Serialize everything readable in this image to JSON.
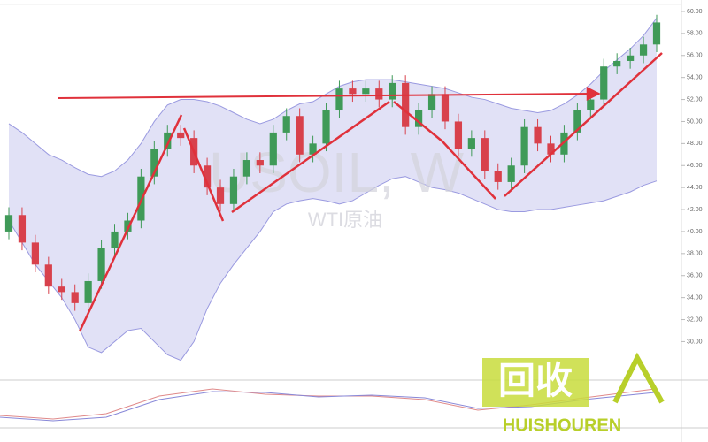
{
  "chart_data": {
    "type": "candlestick",
    "watermark": "USOIL, W",
    "subtitle": "WTI原油",
    "logo_text": "回收",
    "logo_subtext": "HUISHOUREN",
    "up_color": "#3f9a58",
    "down_color": "#d8414c",
    "band_color": "#9a9ae0",
    "ylim": [
      26.5,
      60.64
    ],
    "yticks": [
      {
        "value": 30,
        "label": "30.00"
      },
      {
        "value": 32,
        "label": "32.00"
      },
      {
        "value": 34,
        "label": "34.00"
      },
      {
        "value": 36,
        "label": "36.00"
      },
      {
        "value": 38,
        "label": "38.00"
      },
      {
        "value": 40,
        "label": "40.00"
      },
      {
        "value": 42,
        "label": "42.00"
      },
      {
        "value": 44,
        "label": "44.00"
      },
      {
        "value": 46,
        "label": "46.00"
      },
      {
        "value": 48,
        "label": "48.00"
      },
      {
        "value": 50,
        "label": "50.00"
      },
      {
        "value": 52,
        "label": "52.00"
      },
      {
        "value": 54,
        "label": "54.00"
      },
      {
        "value": 56,
        "label": "56.00"
      },
      {
        "value": 58,
        "label": "58.00"
      },
      {
        "value": 60,
        "label": "60.00"
      }
    ],
    "open": [
      40,
      41.5,
      39,
      37,
      35,
      34.5,
      33.5,
      35.5,
      38.5,
      40,
      41,
      45,
      47.5,
      49,
      48.5,
      46,
      44,
      42.5,
      45,
      46.5,
      46,
      49,
      50.5,
      47,
      48,
      51,
      53,
      52.5,
      53,
      52,
      53.5,
      49.5,
      51,
      52.5,
      50,
      47.5,
      48.5,
      45.5,
      44.5,
      46,
      49.5,
      48,
      47,
      49,
      51,
      52,
      55,
      55.5,
      56,
      57
    ],
    "high": [
      42.2,
      42.2,
      39.7,
      37.7,
      35.7,
      35.2,
      36.2,
      39.2,
      40.7,
      41.7,
      45.7,
      48.2,
      49.7,
      49.7,
      49.2,
      46.7,
      44.7,
      45.7,
      47.2,
      47.2,
      49.7,
      51.2,
      51.2,
      48.7,
      51.7,
      53.7,
      53.7,
      53.7,
      53.7,
      54.2,
      54.2,
      51.7,
      53.2,
      53.2,
      50.7,
      49.2,
      49.2,
      46.2,
      46.7,
      50.2,
      50.2,
      48.7,
      49.7,
      51.7,
      52.7,
      55.7,
      56.2,
      56.7,
      57.7,
      59.7
    ],
    "low": [
      39.3,
      38.3,
      36.3,
      34.3,
      33.8,
      32.8,
      32.8,
      34.8,
      37.8,
      39.3,
      40.3,
      44.3,
      46.8,
      47.8,
      45.3,
      43.3,
      41.8,
      41.8,
      44.3,
      45.3,
      45.3,
      48.3,
      46.3,
      46.3,
      47.3,
      50.3,
      51.8,
      51.8,
      51.3,
      51.3,
      48.8,
      48.8,
      50.3,
      49.3,
      46.8,
      46.8,
      44.8,
      43.8,
      43.8,
      45.3,
      47.3,
      46.3,
      46.3,
      48.3,
      50.3,
      51.3,
      54.3,
      54.8,
      55.3,
      56.3
    ],
    "close": [
      41.5,
      39,
      37,
      35,
      34.5,
      33.5,
      35.5,
      38.5,
      40,
      41,
      45,
      47.5,
      49,
      48.5,
      46,
      44,
      42.5,
      45,
      46.5,
      46,
      49,
      50.5,
      47,
      48,
      51,
      53,
      52.5,
      53,
      52,
      53.5,
      49.5,
      51,
      52.5,
      50,
      47.5,
      48.5,
      45.5,
      44.5,
      46,
      49.5,
      48,
      47,
      49,
      51,
      52,
      55,
      55.5,
      56,
      57,
      59
    ],
    "band_upper": [
      49.8,
      49,
      48,
      47,
      46.5,
      45.8,
      45.2,
      45,
      45.5,
      46.5,
      48,
      50,
      51.5,
      52,
      52,
      51.8,
      51.4,
      50.8,
      50.2,
      49.8,
      50.2,
      51,
      51.6,
      51.8,
      52.5,
      53.2,
      53.6,
      53.8,
      53.8,
      53.8,
      53.6,
      53.4,
      53.2,
      53,
      52.6,
      52.2,
      52,
      51.6,
      51.2,
      51,
      50.8,
      51,
      51.6,
      52.4,
      53.4,
      54.6,
      55.6,
      56.6,
      57.8,
      59.4
    ],
    "band_lower": [
      41,
      39,
      37,
      35.5,
      34,
      32,
      29.5,
      29,
      30,
      31,
      31.2,
      30,
      28.8,
      28.3,
      30,
      33,
      35.3,
      37,
      38.5,
      40,
      41.8,
      42.5,
      42.8,
      43,
      42.8,
      42.5,
      42.8,
      43.5,
      44.2,
      44.8,
      45,
      44.5,
      44,
      43.8,
      43.5,
      43,
      42.5,
      42,
      41.8,
      41.8,
      42,
      42,
      42.2,
      42.4,
      42.6,
      42.8,
      43.2,
      43.6,
      44.2,
      44.6
    ]
  }
}
